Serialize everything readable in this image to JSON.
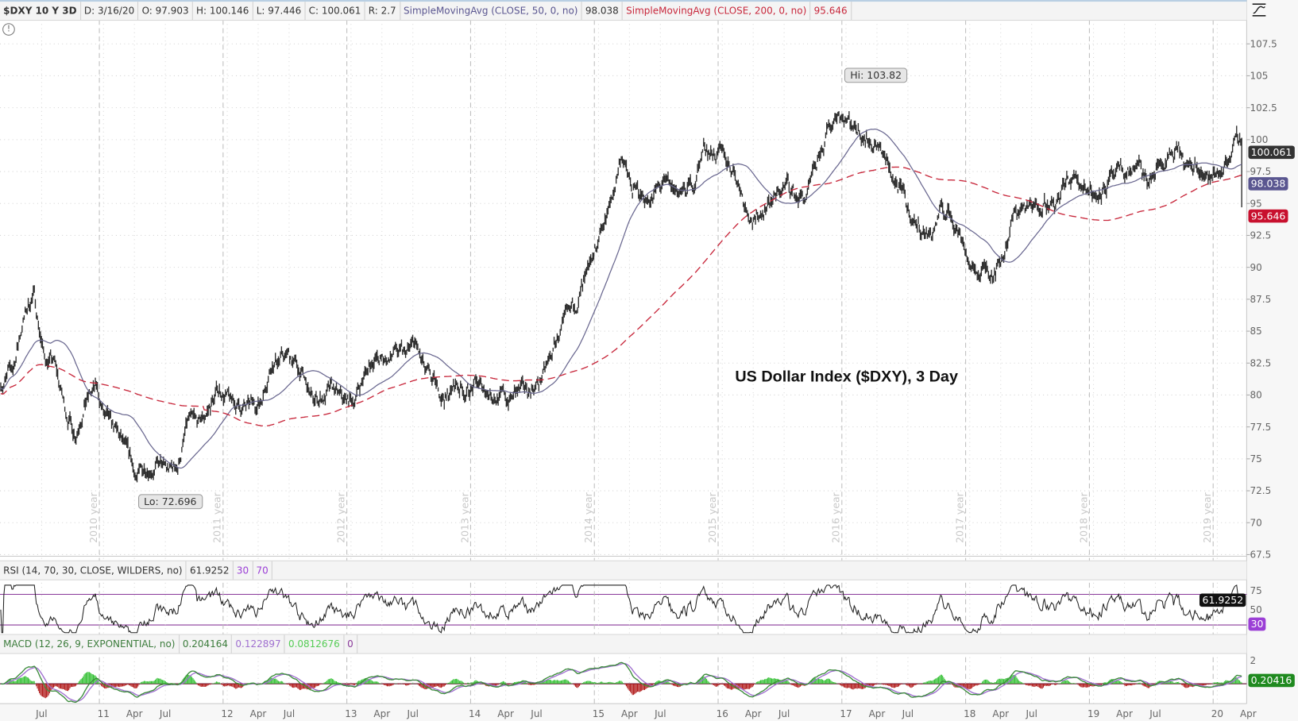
{
  "header": {
    "symbol": "$DXY 10 Y 3D",
    "date": "D: 3/16/20",
    "open": "O: 97.903",
    "high": "H: 100.146",
    "low": "L: 97.446",
    "close": "C: 100.061",
    "range": "R: 2.7",
    "sma50_label": "SimpleMovingAvg (CLOSE, 50, 0, no)",
    "sma50_value": "98.038",
    "sma200_label": "SimpleMovingAvg (CLOSE, 200, 0, no)",
    "sma200_value": "95.646"
  },
  "icons": {
    "alert": "exclamation-circle-icon",
    "style": "chart-style-icon"
  },
  "title": "US Dollar Index ($DXY), 3 Day",
  "callouts": {
    "hi": "Hi: 103.82",
    "lo": "Lo: 72.696"
  },
  "badges": {
    "close": "100.061",
    "sma50": "98.038",
    "sma200": "95.646",
    "rsi": "61.9252",
    "rsi_low": "30",
    "macd": "0.20416"
  },
  "rsi": {
    "label": "RSI (14, 70, 30, CLOSE, WILDERS, no)",
    "value": "61.9252",
    "oversold": "30",
    "overbought": "70",
    "axis": [
      "75",
      "50"
    ]
  },
  "macd": {
    "label": "MACD (12, 26, 9, EXPONENTIAL, no)",
    "value": "0.204164",
    "avg": "0.122897",
    "diff": "0.0812676",
    "zero": "0",
    "axis": [
      "2"
    ]
  },
  "colors": {
    "price": "#2b2b2b",
    "sma50": "#6a6890",
    "sma200": "#c8283c",
    "rsi": "#222222",
    "rsi_bands": "#8a3a9a",
    "macd_value": "#3c8c3c",
    "macd_avg": "#a070d0",
    "hist_up": "#33c033",
    "hist_down": "#b01818",
    "close_badge": "#333333",
    "sma50_badge": "#5a5690",
    "sma200_badge": "#c8102e",
    "rsi_badge": "#111111",
    "rsi30_badge": "#9b3fd6",
    "macd_badge": "#1f8a1f"
  },
  "chart_data": {
    "type": "line",
    "title": "US Dollar Index ($DXY), 3 Day",
    "ylim": [
      67.5,
      107.5
    ],
    "yticks": [
      "107.5",
      "105",
      "102.5",
      "100",
      "97.5",
      "95",
      "92.5",
      "90",
      "87.5",
      "85",
      "82.5",
      "80",
      "77.5",
      "75",
      "72.5",
      "70",
      "67.5"
    ],
    "grid": true,
    "hi": {
      "date": "2017-01",
      "value": 103.82
    },
    "lo": {
      "date": "2011-05",
      "value": 72.696
    },
    "year_markers": [
      {
        "label": "2010 year",
        "date": "2011-01"
      },
      {
        "label": "2011 year",
        "date": "2012-01"
      },
      {
        "label": "2012 year",
        "date": "2013-01"
      },
      {
        "label": "2013 year",
        "date": "2014-01"
      },
      {
        "label": "2014 year",
        "date": "2015-01"
      },
      {
        "label": "2015 year",
        "date": "2016-01"
      },
      {
        "label": "2016 year",
        "date": "2017-01"
      },
      {
        "label": "2017 year",
        "date": "2018-01"
      },
      {
        "label": "2018 year",
        "date": "2019-01"
      },
      {
        "label": "2019 year",
        "date": "2020-01"
      }
    ],
    "xticks": [
      {
        "label": "Jul",
        "date": "2010-07"
      },
      {
        "label": "11",
        "date": "2011-01"
      },
      {
        "label": "Apr",
        "date": "2011-04"
      },
      {
        "label": "Jul",
        "date": "2011-07"
      },
      {
        "label": "12",
        "date": "2012-01"
      },
      {
        "label": "Apr",
        "date": "2012-04"
      },
      {
        "label": "Jul",
        "date": "2012-07"
      },
      {
        "label": "13",
        "date": "2013-01"
      },
      {
        "label": "Apr",
        "date": "2013-04"
      },
      {
        "label": "Jul",
        "date": "2013-07"
      },
      {
        "label": "14",
        "date": "2014-01"
      },
      {
        "label": "Apr",
        "date": "2014-04"
      },
      {
        "label": "Jul",
        "date": "2014-07"
      },
      {
        "label": "15",
        "date": "2015-01"
      },
      {
        "label": "Apr",
        "date": "2015-04"
      },
      {
        "label": "Jul",
        "date": "2015-07"
      },
      {
        "label": "16",
        "date": "2016-01"
      },
      {
        "label": "Apr",
        "date": "2016-04"
      },
      {
        "label": "Jul",
        "date": "2016-07"
      },
      {
        "label": "17",
        "date": "2017-01"
      },
      {
        "label": "Apr",
        "date": "2017-04"
      },
      {
        "label": "Jul",
        "date": "2017-07"
      },
      {
        "label": "18",
        "date": "2018-01"
      },
      {
        "label": "Apr",
        "date": "2018-04"
      },
      {
        "label": "Jul",
        "date": "2018-07"
      },
      {
        "label": "19",
        "date": "2019-01"
      },
      {
        "label": "Apr",
        "date": "2019-04"
      },
      {
        "label": "Jul",
        "date": "2019-07"
      },
      {
        "label": "20",
        "date": "2020-01"
      },
      {
        "label": "Apr",
        "date": "2020-04"
      }
    ],
    "series": [
      {
        "name": "$DXY",
        "points": [
          [
            "2010-03",
            81.0
          ],
          [
            "2010-04",
            82.0
          ],
          [
            "2010-05",
            86.0
          ],
          [
            "2010-06",
            88.0
          ],
          [
            "2010-07",
            83.0
          ],
          [
            "2010-08",
            82.5
          ],
          [
            "2010-09",
            79.0
          ],
          [
            "2010-10",
            77.0
          ],
          [
            "2010-11",
            79.5
          ],
          [
            "2010-12",
            80.5
          ],
          [
            "2011-01",
            78.0
          ],
          [
            "2011-02",
            77.0
          ],
          [
            "2011-03",
            75.5
          ],
          [
            "2011-04",
            73.5
          ],
          [
            "2011-05",
            74.5
          ],
          [
            "2011-06",
            74.5
          ],
          [
            "2011-07",
            74.0
          ],
          [
            "2011-08",
            74.5
          ],
          [
            "2011-09",
            78.0
          ],
          [
            "2011-10",
            77.5
          ],
          [
            "2011-11",
            79.0
          ],
          [
            "2011-12",
            80.5
          ],
          [
            "2012-01",
            79.5
          ],
          [
            "2012-02",
            79.0
          ],
          [
            "2012-03",
            79.0
          ],
          [
            "2012-04",
            79.5
          ],
          [
            "2012-05",
            82.5
          ],
          [
            "2012-06",
            83.0
          ],
          [
            "2012-07",
            83.0
          ],
          [
            "2012-08",
            81.5
          ],
          [
            "2012-09",
            79.5
          ],
          [
            "2012-10",
            79.8
          ],
          [
            "2012-11",
            80.3
          ],
          [
            "2012-12",
            79.5
          ],
          [
            "2013-01",
            79.5
          ],
          [
            "2013-02",
            81.5
          ],
          [
            "2013-03",
            83.0
          ],
          [
            "2013-04",
            82.5
          ],
          [
            "2013-05",
            83.5
          ],
          [
            "2013-06",
            83.0
          ],
          [
            "2013-07",
            84.0
          ],
          [
            "2013-08",
            81.5
          ],
          [
            "2013-09",
            80.5
          ],
          [
            "2013-10",
            79.8
          ],
          [
            "2013-11",
            80.8
          ],
          [
            "2013-12",
            80.3
          ],
          [
            "2014-01",
            80.8
          ],
          [
            "2014-02",
            80.3
          ],
          [
            "2014-03",
            80.0
          ],
          [
            "2014-04",
            79.6
          ],
          [
            "2014-05",
            80.2
          ],
          [
            "2014-06",
            80.4
          ],
          [
            "2014-07",
            81.0
          ],
          [
            "2014-08",
            82.5
          ],
          [
            "2014-09",
            85.0
          ],
          [
            "2014-10",
            86.0
          ],
          [
            "2014-11",
            88.0
          ],
          [
            "2014-12",
            89.5
          ],
          [
            "2015-01",
            93.0
          ],
          [
            "2015-02",
            95.0
          ],
          [
            "2015-03",
            99.0
          ],
          [
            "2015-04",
            96.0
          ],
          [
            "2015-05",
            95.5
          ],
          [
            "2015-06",
            95.5
          ],
          [
            "2015-07",
            96.5
          ],
          [
            "2015-08",
            96.0
          ],
          [
            "2015-09",
            95.8
          ],
          [
            "2015-10",
            96.5
          ],
          [
            "2015-11",
            99.5
          ],
          [
            "2015-12",
            99.0
          ],
          [
            "2016-01",
            98.5
          ],
          [
            "2016-02",
            97.5
          ],
          [
            "2016-03",
            95.0
          ],
          [
            "2016-04",
            93.5
          ],
          [
            "2016-05",
            95.0
          ],
          [
            "2016-06",
            95.5
          ],
          [
            "2016-07",
            96.5
          ],
          [
            "2016-08",
            95.5
          ],
          [
            "2016-09",
            95.5
          ],
          [
            "2016-10",
            98.0
          ],
          [
            "2016-11",
            100.5
          ],
          [
            "2016-12",
            102.5
          ],
          [
            "2017-01",
            101.5
          ],
          [
            "2017-02",
            101.0
          ],
          [
            "2017-03",
            100.0
          ],
          [
            "2017-04",
            99.5
          ],
          [
            "2017-05",
            97.5
          ],
          [
            "2017-06",
            96.0
          ],
          [
            "2017-07",
            94.0
          ],
          [
            "2017-08",
            93.0
          ],
          [
            "2017-09",
            92.5
          ],
          [
            "2017-10",
            94.5
          ],
          [
            "2017-11",
            94.0
          ],
          [
            "2017-12",
            92.5
          ],
          [
            "2018-01",
            89.5
          ],
          [
            "2018-02",
            89.8
          ],
          [
            "2018-03",
            89.8
          ],
          [
            "2018-04",
            91.0
          ],
          [
            "2018-05",
            94.0
          ],
          [
            "2018-06",
            94.8
          ],
          [
            "2018-07",
            94.5
          ],
          [
            "2018-08",
            95.5
          ],
          [
            "2018-09",
            94.5
          ],
          [
            "2018-10",
            96.5
          ],
          [
            "2018-11",
            97.0
          ],
          [
            "2018-12",
            96.5
          ],
          [
            "2019-01",
            95.8
          ],
          [
            "2019-02",
            96.5
          ],
          [
            "2019-03",
            97.0
          ],
          [
            "2019-04",
            97.5
          ],
          [
            "2019-05",
            97.8
          ],
          [
            "2019-06",
            96.5
          ],
          [
            "2019-07",
            97.8
          ],
          [
            "2019-08",
            98.5
          ],
          [
            "2019-09",
            98.8
          ],
          [
            "2019-10",
            97.5
          ],
          [
            "2019-11",
            98.2
          ],
          [
            "2019-12",
            96.8
          ],
          [
            "2020-01",
            97.5
          ],
          [
            "2020-02",
            99.0
          ],
          [
            "2020-03",
            100.06
          ]
        ]
      }
    ],
    "indicators": [
      "SimpleMovingAvg 50",
      "SimpleMovingAvg 200",
      "RSI 14",
      "MACD 12/26/9"
    ]
  }
}
